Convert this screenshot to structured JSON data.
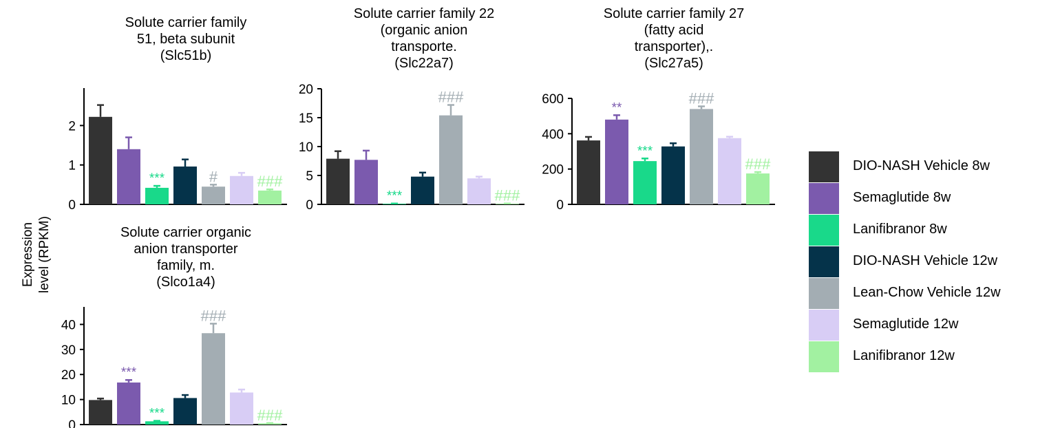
{
  "ylabel": [
    "Expression",
    "level (RPKM)"
  ],
  "groups": [
    {
      "name": "DIO-NASH Vehicle 8w",
      "color": "#333333"
    },
    {
      "name": "Semaglutide 8w",
      "color": "#7B5AAE"
    },
    {
      "name": "Lanifibranor 8w",
      "color": "#19D98A"
    },
    {
      "name": "DIO-NASH Vehicle 12w",
      "color": "#05334A"
    },
    {
      "name": "Lean-Chow Vehicle 12w",
      "color": "#A3ADB3"
    },
    {
      "name": "Semaglutide 12w",
      "color": "#D8CDF5"
    },
    {
      "name": "Lanifibranor 12w",
      "color": "#A2F1A1"
    }
  ],
  "chart_data": [
    {
      "type": "bar",
      "title": [
        "Solute carrier family",
        "51, beta subunit",
        "(Slc51b)"
      ],
      "categories": [
        "DIO-NASH Vehicle 8w",
        "Semaglutide 8w",
        "Lanifibranor 8w",
        "DIO-NASH Vehicle 12w",
        "Lean-Chow Vehicle 12w",
        "Semaglutide 12w",
        "Lanifibranor 12w"
      ],
      "values": [
        2.22,
        1.4,
        0.42,
        0.96,
        0.45,
        0.72,
        0.35
      ],
      "errors": [
        0.3,
        0.3,
        0.05,
        0.18,
        0.05,
        0.08,
        0.03
      ],
      "yticks": [
        0,
        1,
        2
      ],
      "ylim": [
        0,
        2.95
      ],
      "annotations": [
        "",
        "",
        "***",
        "",
        "#",
        "",
        "###"
      ],
      "annotation_colors": [
        "",
        "",
        "#19D98A",
        "",
        "#A3ADB3",
        "",
        "#A2F1A1"
      ]
    },
    {
      "type": "bar",
      "title": [
        "Solute carrier family 22",
        "(organic anion",
        "transporte.",
        "(Slc22a7)"
      ],
      "categories": [
        "DIO-NASH Vehicle 8w",
        "Semaglutide 8w",
        "Lanifibranor 8w",
        "DIO-NASH Vehicle 12w",
        "Lean-Chow Vehicle 12w",
        "Semaglutide 12w",
        "Lanifibranor 12w"
      ],
      "values": [
        7.9,
        7.7,
        0.1,
        4.8,
        15.4,
        4.5,
        0.1
      ],
      "errors": [
        1.3,
        1.6,
        0.05,
        0.7,
        1.8,
        0.3,
        0.05
      ],
      "yticks": [
        0,
        5,
        10,
        15,
        20
      ],
      "ylim": [
        0,
        20
      ],
      "annotations": [
        "",
        "",
        "***",
        "",
        "###",
        "",
        "###"
      ],
      "annotation_colors": [
        "",
        "",
        "#19D98A",
        "",
        "#A3ADB3",
        "",
        "#A2F1A1"
      ]
    },
    {
      "type": "bar",
      "title": [
        "Solute carrier family 27",
        "(fatty acid",
        "transporter),.",
        "(Slc27a5)"
      ],
      "categories": [
        "DIO-NASH Vehicle 8w",
        "Semaglutide 8w",
        "Lanifibranor 8w",
        "DIO-NASH Vehicle 12w",
        "Lean-Chow Vehicle 12w",
        "Semaglutide 12w",
        "Lanifibranor 12w"
      ],
      "values": [
        362,
        480,
        245,
        328,
        540,
        375,
        175
      ],
      "errors": [
        20,
        25,
        15,
        18,
        15,
        8,
        8
      ],
      "yticks": [
        0,
        200,
        400,
        600
      ],
      "ylim": [
        0,
        600
      ],
      "annotations": [
        "",
        "**",
        "***",
        "",
        "###",
        "",
        "###"
      ],
      "annotation_colors": [
        "",
        "#7B5AAE",
        "#19D98A",
        "",
        "#A3ADB3",
        "",
        "#A2F1A1"
      ]
    },
    {
      "type": "bar",
      "title": [
        "Solute carrier organic",
        "anion transporter",
        "family, m.",
        "(Slco1a4)"
      ],
      "categories": [
        "DIO-NASH Vehicle 8w",
        "Semaglutide 8w",
        "Lanifibranor 8w",
        "DIO-NASH Vehicle 12w",
        "Lean-Chow Vehicle 12w",
        "Semaglutide 12w",
        "Lanifibranor 12w"
      ],
      "values": [
        9.8,
        16.8,
        1.3,
        10.6,
        36.5,
        12.8,
        0.5
      ],
      "errors": [
        0.6,
        1.0,
        0.2,
        1.2,
        3.8,
        1.2,
        0.1
      ],
      "yticks": [
        0,
        10,
        20,
        30,
        40
      ],
      "ylim": [
        0,
        47
      ],
      "annotations": [
        "",
        "***",
        "***",
        "",
        "###",
        "",
        "###"
      ],
      "annotation_colors": [
        "",
        "#7B5AAE",
        "#19D98A",
        "",
        "#A3ADB3",
        "",
        "#A2F1A1"
      ]
    }
  ]
}
